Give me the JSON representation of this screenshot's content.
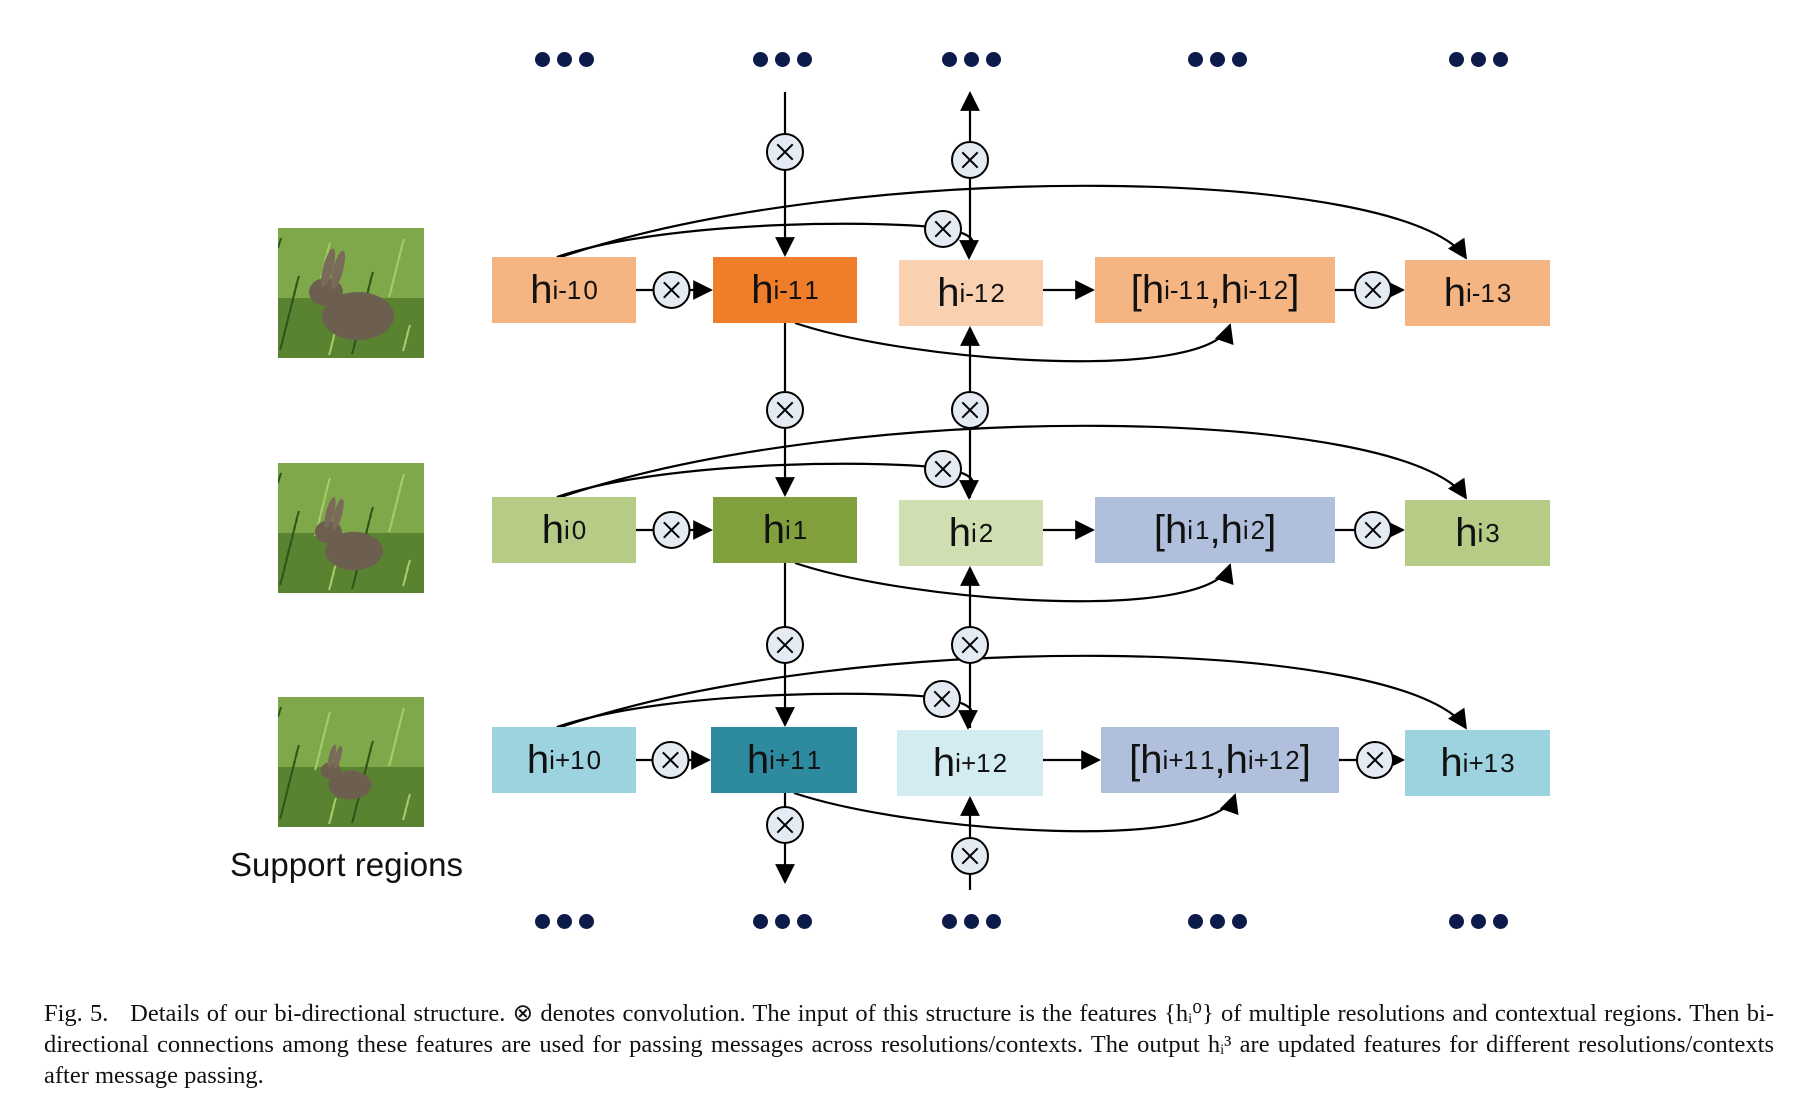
{
  "rows": [
    {
      "nodes": [
        {
          "base": "h",
          "sub": "i-1",
          "sup": "0",
          "color": "#f5b583"
        },
        {
          "base": "h",
          "sub": "i-1",
          "sup": "1",
          "color": "#ef7d29"
        },
        {
          "base": "h",
          "sub": "i-1",
          "sup": "2",
          "color": "#f9d0b0"
        },
        {
          "concat": true,
          "parts": [
            {
              "sub": "i-1",
              "sup": "1"
            },
            {
              "sub": "i-1",
              "sup": "2"
            }
          ],
          "color": "#f5b583"
        },
        {
          "base": "h",
          "sub": "i-1",
          "sup": "3",
          "color": "#f5b583"
        }
      ]
    },
    {
      "nodes": [
        {
          "base": "h",
          "sub": "i",
          "sup": "0",
          "color": "#b6cc86"
        },
        {
          "base": "h",
          "sub": "i",
          "sup": "1",
          "color": "#7fa03d"
        },
        {
          "base": "h",
          "sub": "i",
          "sup": "2",
          "color": "#cfdfb1"
        },
        {
          "concat": true,
          "parts": [
            {
              "sub": "i",
              "sup": "1"
            },
            {
              "sub": "i",
              "sup": "2"
            }
          ],
          "color": "#b0c0dc"
        },
        {
          "base": "h",
          "sub": "i",
          "sup": "3",
          "color": "#b6cc86"
        }
      ]
    },
    {
      "nodes": [
        {
          "base": "h",
          "sub": "i+1",
          "sup": "0",
          "color": "#9dd2df"
        },
        {
          "base": "h",
          "sub": "i+1",
          "sup": "1",
          "color": "#2e8a9f"
        },
        {
          "base": "h",
          "sub": "i+1",
          "sup": "2",
          "color": "#d3ecf2"
        },
        {
          "concat": true,
          "parts": [
            {
              "sub": "i+1",
              "sup": "1"
            },
            {
              "sub": "i+1",
              "sup": "2"
            }
          ],
          "color": "#b0c0dc"
        },
        {
          "base": "h",
          "sub": "i+1",
          "sup": "3",
          "color": "#9dd2df"
        }
      ]
    }
  ],
  "support_label": "Support regions",
  "caption": {
    "prefix": "Fig. 5.",
    "text": "Details of our bi-directional structure. ⊗ denotes convolution. The input of this structure is the features {hᵢ⁰} of multiple resolutions and contextual regions. Then bi-directional connections among these features are used for passing messages across resolutions/contexts. The output hᵢ³ are updated features for different resolutions/contexts after message passing."
  },
  "colors": {
    "arrow": "#000000",
    "conv_fill": "#e4ebf3",
    "dot": "#0d1b4a",
    "grass_light": "#7fa84a",
    "grass_dark": "#3f6a22",
    "rabbit": "#6d5f4f"
  },
  "icons": {
    "conv": "circled-times-icon",
    "ellipsis": "ellipsis-dots-icon",
    "thumbnail": "rabbit-photo"
  }
}
